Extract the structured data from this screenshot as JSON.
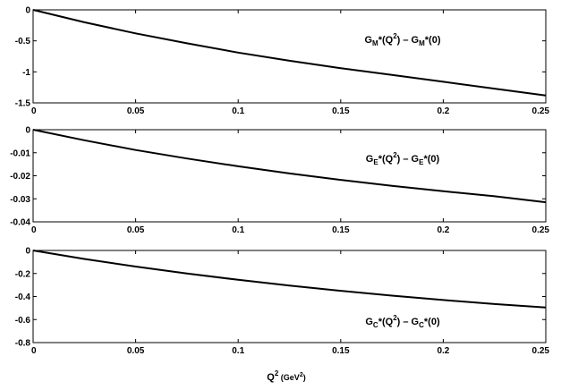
{
  "xlabel": {
    "base": "Q",
    "sup": "2",
    "unit_open": " (GeV",
    "unit_sup": "2",
    "unit_close": ")"
  },
  "chart_data": [
    {
      "type": "line",
      "label": {
        "G": "G",
        "sub1": "M",
        "mid": "*(Q",
        "sup": "2",
        "mid2": ") – G",
        "sub2": "M",
        "tail": "*(0)"
      },
      "xlim": [
        0,
        0.25
      ],
      "ylim": [
        -1.5,
        0
      ],
      "xticks": [
        0,
        0.05,
        0.1,
        0.15,
        0.2,
        0.25
      ],
      "xtick_labels": [
        "0",
        "0.05",
        "0.1",
        "0.15",
        "0.2",
        "0.25"
      ],
      "yticks": [
        0,
        -0.5,
        -1,
        -1.5
      ],
      "ytick_labels": [
        "0",
        "-0.5",
        "-1",
        "-1.5"
      ],
      "grid": false,
      "series": [
        {
          "x": [
            0,
            0.025,
            0.05,
            0.075,
            0.1,
            0.125,
            0.15,
            0.175,
            0.2,
            0.225,
            0.25
          ],
          "y": [
            0,
            -0.2,
            -0.38,
            -0.54,
            -0.69,
            -0.82,
            -0.94,
            -1.05,
            -1.16,
            -1.27,
            -1.38
          ]
        }
      ]
    },
    {
      "type": "line",
      "label": {
        "G": "G",
        "sub1": "E",
        "mid": "*(Q",
        "sup": "2",
        "mid2": ") – G",
        "sub2": "E",
        "tail": "*(0)"
      },
      "xlim": [
        0,
        0.25
      ],
      "ylim": [
        -0.04,
        0
      ],
      "xticks": [
        0,
        0.05,
        0.1,
        0.15,
        0.2,
        0.25
      ],
      "xtick_labels": [
        "0",
        "0.05",
        "0.1",
        "0.15",
        "0.2",
        "0.25"
      ],
      "yticks": [
        0,
        -0.01,
        -0.02,
        -0.03,
        -0.04
      ],
      "ytick_labels": [
        "0",
        "-0.01",
        "-0.02",
        "-0.03",
        "-0.04"
      ],
      "grid": false,
      "series": [
        {
          "x": [
            0,
            0.025,
            0.05,
            0.075,
            0.1,
            0.125,
            0.15,
            0.175,
            0.2,
            0.225,
            0.25
          ],
          "y": [
            0,
            -0.0046,
            -0.0088,
            -0.0125,
            -0.0159,
            -0.019,
            -0.0218,
            -0.0244,
            -0.0267,
            -0.0289,
            -0.0315
          ]
        }
      ]
    },
    {
      "type": "line",
      "label": {
        "G": "G",
        "sub1": "C",
        "mid": "*(Q",
        "sup": "2",
        "mid2": ") – G",
        "sub2": "C",
        "tail": "*(0)"
      },
      "xlim": [
        0,
        0.25
      ],
      "ylim": [
        -0.8,
        0
      ],
      "xticks": [
        0,
        0.05,
        0.1,
        0.15,
        0.2,
        0.25
      ],
      "xtick_labels": [
        "0",
        "0.05",
        "0.1",
        "0.15",
        "0.2",
        "0.25"
      ],
      "yticks": [
        0,
        -0.2,
        -0.4,
        -0.6,
        -0.8
      ],
      "ytick_labels": [
        "0",
        "-0.2",
        "-0.4",
        "-0.6",
        "-0.8"
      ],
      "grid": false,
      "series": [
        {
          "x": [
            0,
            0.025,
            0.05,
            0.075,
            0.1,
            0.125,
            0.15,
            0.175,
            0.2,
            0.225,
            0.25
          ],
          "y": [
            0,
            -0.074,
            -0.14,
            -0.2,
            -0.255,
            -0.305,
            -0.35,
            -0.392,
            -0.43,
            -0.465,
            -0.495
          ]
        }
      ]
    }
  ]
}
